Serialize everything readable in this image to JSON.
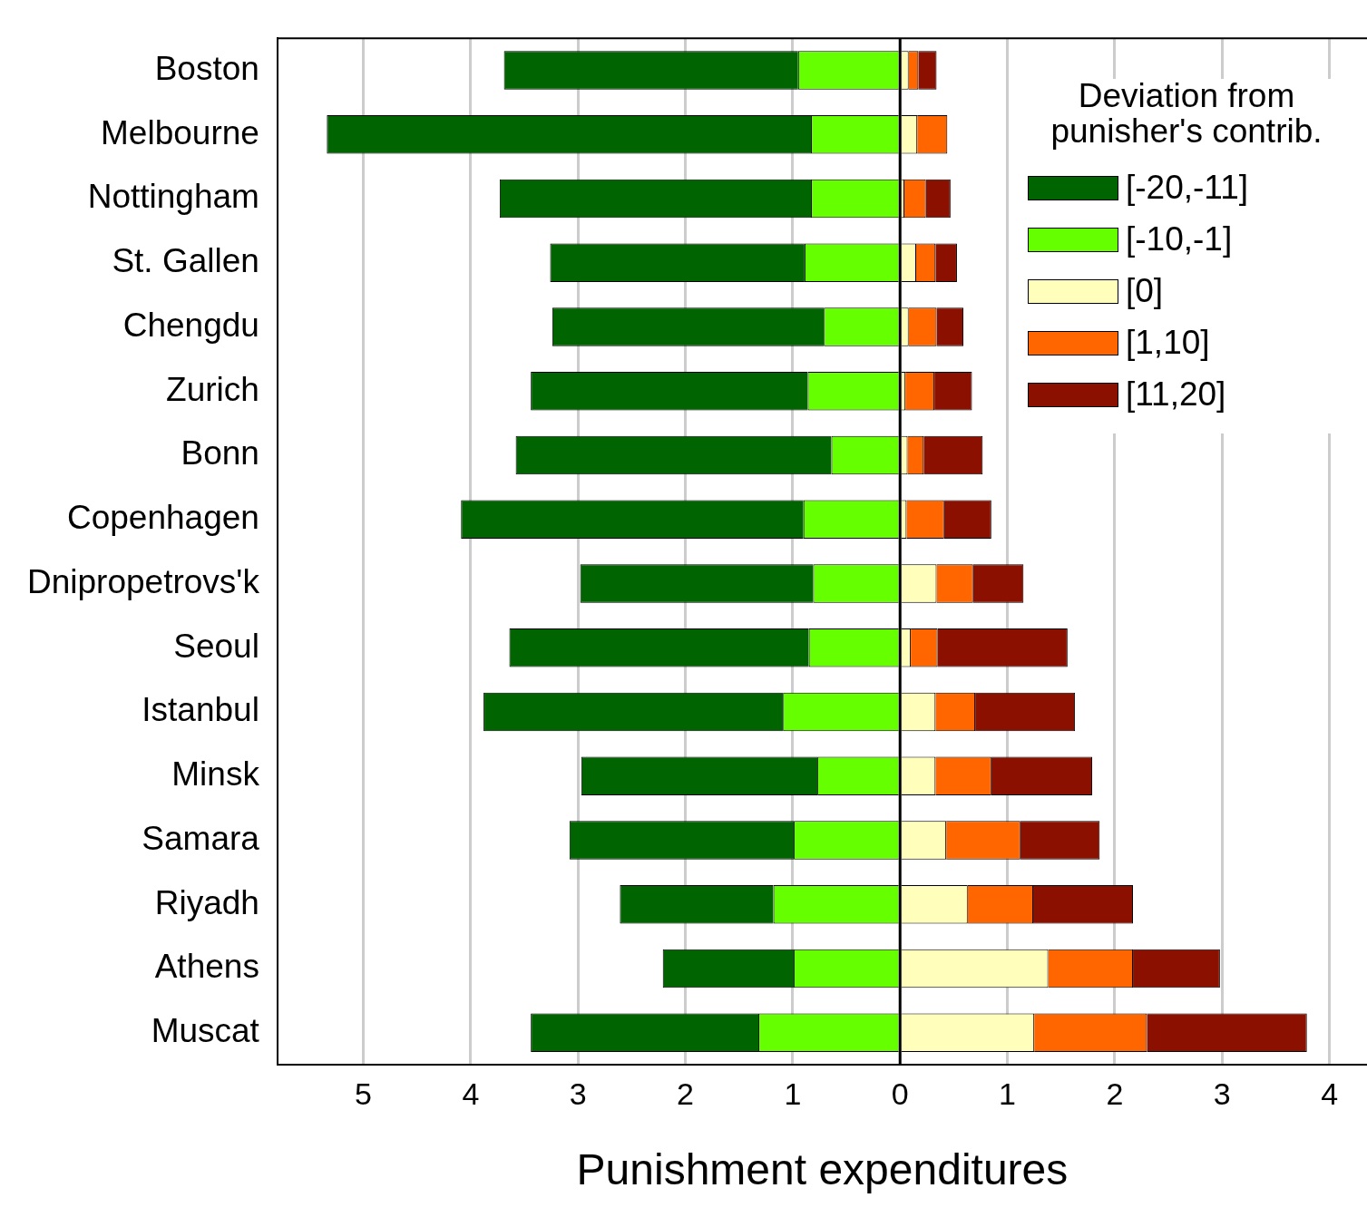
{
  "chart_data": {
    "type": "bar",
    "orientation": "horizontal",
    "stacked": true,
    "xlabel": "Punishment expenditures",
    "legend_title": "Deviation from punisher's contrib.",
    "legend": "top right",
    "grid": "x",
    "categories": [
      "Boston",
      "Melbourne",
      "Nottingham",
      "St. Gallen",
      "Chengdu",
      "Zurich",
      "Bonn",
      "Copenhagen",
      "Dnipropetrovs'k",
      "Seoul",
      "Istanbul",
      "Minsk",
      "Samara",
      "Riyadh",
      "Athens",
      "Muscat"
    ],
    "series": [
      {
        "name": "[-10,-1]",
        "color": "#66ff00",
        "values": [
          -0.95,
          -0.83,
          -0.83,
          -0.89,
          -0.71,
          -0.86,
          -0.64,
          -0.9,
          -0.81,
          -0.85,
          -1.09,
          -0.77,
          -0.99,
          -1.18,
          -0.99,
          -1.32
        ]
      },
      {
        "name": "[-20,-11]",
        "color": "#006400",
        "values": [
          -2.74,
          -4.51,
          -2.9,
          -2.37,
          -2.53,
          -2.58,
          -2.94,
          -3.19,
          -2.17,
          -2.79,
          -2.79,
          -2.2,
          -2.09,
          -1.43,
          -1.22,
          -2.12
        ]
      },
      {
        "name": "[0]",
        "color": "#ffffbb",
        "values": [
          0.08,
          0.16,
          0.04,
          0.15,
          0.08,
          0.05,
          0.07,
          0.06,
          0.34,
          0.1,
          0.33,
          0.33,
          0.43,
          0.63,
          1.38,
          1.25
        ]
      },
      {
        "name": "[1,10]",
        "color": "#ff6600",
        "values": [
          0.09,
          0.28,
          0.2,
          0.18,
          0.26,
          0.27,
          0.15,
          0.35,
          0.34,
          0.25,
          0.37,
          0.52,
          0.69,
          0.61,
          0.79,
          1.05
        ]
      },
      {
        "name": "[11,20]",
        "color": "#8b1000",
        "values": [
          0.17,
          0,
          0.23,
          0.2,
          0.25,
          0.35,
          0.55,
          0.44,
          0.47,
          1.21,
          0.93,
          0.94,
          0.74,
          0.93,
          0.81,
          1.49
        ]
      }
    ],
    "xlim": [
      -5.8,
      4.35
    ],
    "xticks": [
      {
        "value": -5,
        "label": "5"
      },
      {
        "value": -4,
        "label": "4"
      },
      {
        "value": -3,
        "label": "3"
      },
      {
        "value": -2,
        "label": "2"
      },
      {
        "value": -1,
        "label": "1"
      },
      0,
      1,
      2,
      3,
      4
    ],
    "ref_lines": [
      {
        "axis": "x",
        "value": 0,
        "color": "#000000"
      }
    ]
  }
}
